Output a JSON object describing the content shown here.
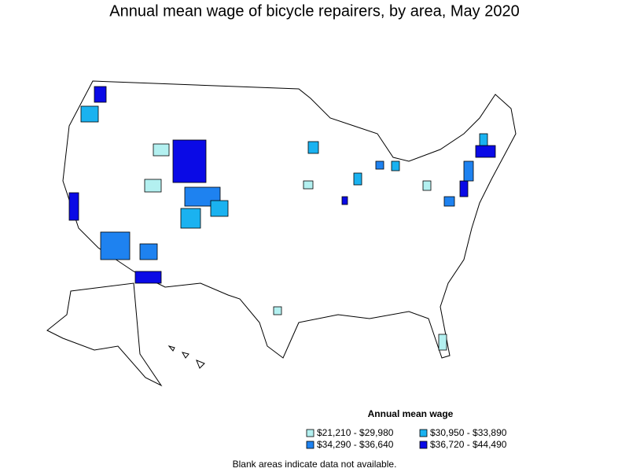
{
  "title": "Annual mean wage of bicycle repairers, by area, May 2020",
  "legend": {
    "title": "Annual mean wage",
    "items": [
      {
        "label": "$21,210 - $29,980",
        "color": "#b3f0f0"
      },
      {
        "label": "$30,950 - $33,890",
        "color": "#1ab2f0"
      },
      {
        "label": "$34,290 - $36,640",
        "color": "#1e82f0"
      },
      {
        "label": "$36,720 - $44,490",
        "color": "#0a0ae6"
      }
    ]
  },
  "note": "Blank areas indicate data not available."
}
